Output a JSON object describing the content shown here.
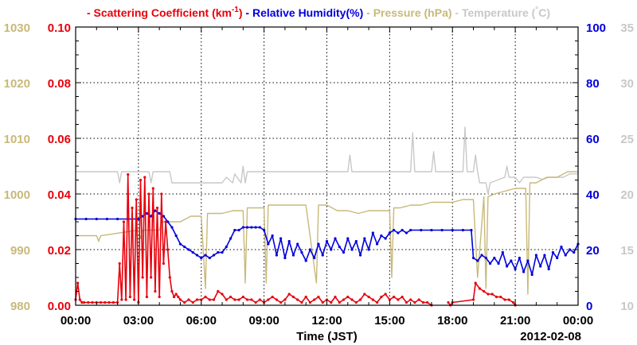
{
  "chart_data": {
    "type": "line",
    "legend": [
      {
        "prefix": "- ",
        "label": "Scattering Coefficient (km",
        "sup": "-1",
        "suffix": ")",
        "color": "#e8000b"
      },
      {
        "prefix": " - ",
        "label": "Relative Humidity(%)",
        "sup": "",
        "suffix": "",
        "color": "#0000dd"
      },
      {
        "prefix": " - ",
        "label": "Pressure (hPa)",
        "sup": "",
        "suffix": "",
        "color": "#c8b97a"
      },
      {
        "prefix": " - ",
        "label": "Temperature (",
        "sup": "°",
        "suffix": "C)",
        "color": "#c8c8c8"
      }
    ],
    "xlabel": "Time (JST)",
    "date_label": "2012-02-08",
    "x_range": [
      0,
      24
    ],
    "x_ticks": [
      0,
      3,
      6,
      9,
      12,
      15,
      18,
      21,
      24
    ],
    "x_tick_labels": [
      "00:00",
      "03:00",
      "06:00",
      "09:00",
      "12:00",
      "15:00",
      "18:00",
      "21:00",
      "00:00"
    ],
    "axes": {
      "scattering": {
        "range": [
          0,
          0.1
        ],
        "ticks": [
          0,
          0.02,
          0.04,
          0.06,
          0.08,
          0.1
        ],
        "tick_labels": [
          "0.00",
          "0.02",
          "0.04",
          "0.06",
          "0.08",
          "0.10"
        ],
        "color": "#e8000b",
        "side": "left-inner"
      },
      "pressure": {
        "range": [
          980,
          1030
        ],
        "ticks": [
          980,
          990,
          1000,
          1010,
          1020,
          1030
        ],
        "tick_labels": [
          "980",
          "990",
          "1000",
          "1010",
          "1020",
          "1030"
        ],
        "color": "#c8b97a",
        "side": "left-outer"
      },
      "humidity": {
        "range": [
          0,
          100
        ],
        "ticks": [
          0,
          20,
          40,
          60,
          80,
          100
        ],
        "tick_labels": [
          "0",
          "20",
          "40",
          "60",
          "80",
          "100"
        ],
        "color": "#0000dd",
        "side": "right-inner"
      },
      "temperature": {
        "range": [
          10,
          35
        ],
        "ticks": [
          10,
          15,
          20,
          25,
          30,
          35
        ],
        "tick_labels": [
          "10",
          "15",
          "20",
          "25",
          "30",
          "35"
        ],
        "color": "#c8c8c8",
        "side": "right-outer"
      }
    },
    "grid": true,
    "series": [
      {
        "name": "Temperature",
        "axis": "temperature",
        "color": "#c8c8c8",
        "x": [
          0,
          2.0,
          2.1,
          2.2,
          2.3,
          3.5,
          3.6,
          3.7,
          3.8,
          4.5,
          4.6,
          7.0,
          7.2,
          7.5,
          7.6,
          7.9,
          8.0,
          8.1,
          8.2,
          9.0,
          10.0,
          11.0,
          13.0,
          13.1,
          13.2,
          13.5,
          15.5,
          16.0,
          16.1,
          16.2,
          17.0,
          17.1,
          17.2,
          17.4,
          18.5,
          18.6,
          18.7,
          18.8,
          19.0,
          19.1,
          19.2,
          19.3,
          19.6,
          19.7,
          19.8,
          20.5,
          20.6,
          20.7,
          21.0,
          21.2,
          21.4,
          22.0,
          22.3,
          22.6,
          23.0,
          23.3,
          23.6,
          24
        ],
        "y": [
          22.0,
          22.0,
          21.0,
          22.0,
          22.0,
          22.0,
          21.0,
          22.0,
          22.0,
          22.0,
          21.0,
          21.0,
          21.5,
          21.0,
          21.8,
          21.0,
          22.5,
          21.0,
          22.0,
          22.0,
          22.0,
          22.0,
          22.0,
          23.5,
          22.0,
          22.0,
          22.0,
          22.0,
          25.5,
          22.0,
          22.0,
          23.8,
          22.0,
          22.0,
          22.0,
          26.0,
          22.0,
          22.0,
          22.0,
          23.5,
          22.0,
          21.0,
          21.0,
          20.0,
          21.0,
          21.5,
          22.5,
          21.5,
          21.5,
          21.0,
          21.5,
          21.5,
          21.3,
          21.5,
          21.5,
          21.5,
          21.8,
          21.8
        ]
      },
      {
        "name": "Pressure",
        "axis": "pressure",
        "color": "#c8b97a",
        "x": [
          0,
          1.0,
          1.1,
          1.2,
          3.0,
          3.1,
          3.2,
          4.0,
          4.1,
          5.0,
          5.5,
          6.0,
          6.2,
          6.3,
          7.0,
          7.5,
          8.0,
          8.1,
          8.2,
          8.5,
          9.0,
          9.1,
          9.2,
          10.0,
          10.5,
          11.0,
          11.5,
          11.6,
          11.7,
          12.0,
          12.5,
          13.0,
          13.5,
          14.0,
          15.0,
          15.1,
          15.2,
          15.5,
          16.0,
          16.5,
          17.0,
          17.5,
          18.0,
          18.5,
          19.0,
          19.2,
          19.5,
          19.6,
          19.7,
          20.0,
          20.5,
          21.0,
          21.5,
          21.6,
          21.7,
          22.0,
          22.5,
          23.0,
          23.5,
          24
        ],
        "y": [
          992.5,
          992.5,
          991.5,
          992.5,
          993.5,
          992.0,
          993.5,
          993.5,
          995.0,
          995.0,
          996.0,
          996.0,
          983.0,
          996.5,
          996.5,
          997.0,
          997.0,
          984.0,
          997.5,
          997.5,
          997.5,
          984.0,
          998.0,
          998.0,
          998.0,
          998.0,
          984.0,
          998.0,
          998.0,
          998.0,
          997.0,
          997.0,
          996.5,
          997.0,
          997.0,
          985.0,
          997.5,
          997.5,
          998.0,
          998.0,
          998.5,
          998.5,
          998.5,
          999.0,
          999.0,
          985.0,
          999.5,
          983.0,
          999.5,
          1000.0,
          1000.5,
          1001.0,
          1001.0,
          982.0,
          1002.0,
          1002.0,
          1003.0,
          1003.0,
          1004.0,
          1004.0
        ]
      },
      {
        "name": "Relative Humidity",
        "axis": "humidity",
        "color": "#0000dd",
        "x": [
          0,
          0.5,
          1.0,
          1.5,
          2.0,
          2.5,
          3.0,
          3.2,
          3.4,
          3.6,
          3.8,
          4.0,
          4.2,
          4.4,
          4.6,
          4.8,
          5.0,
          5.2,
          5.4,
          5.6,
          5.8,
          6.0,
          6.2,
          6.4,
          6.6,
          6.8,
          7.0,
          7.2,
          7.4,
          7.6,
          7.8,
          8.0,
          8.2,
          8.4,
          8.6,
          8.8,
          9.0,
          9.2,
          9.4,
          9.6,
          9.8,
          10.0,
          10.2,
          10.4,
          10.6,
          10.8,
          11.0,
          11.2,
          11.4,
          11.6,
          11.8,
          12.0,
          12.2,
          12.4,
          12.6,
          12.8,
          13.0,
          13.2,
          13.4,
          13.6,
          13.8,
          14.0,
          14.2,
          14.4,
          14.6,
          14.8,
          15.0,
          15.2,
          15.4,
          15.6,
          15.8,
          16.0,
          16.5,
          17.0,
          17.5,
          18.0,
          18.5,
          18.9,
          19.0,
          19.2,
          19.4,
          19.6,
          19.8,
          20.0,
          20.2,
          20.4,
          20.6,
          20.8,
          21.0,
          21.2,
          21.4,
          21.6,
          21.8,
          22.0,
          22.2,
          22.4,
          22.6,
          22.8,
          23.0,
          23.2,
          23.4,
          23.6,
          23.8,
          24
        ],
        "y": [
          31,
          31,
          31,
          31,
          31,
          31,
          31,
          32,
          33,
          32,
          34,
          33,
          32,
          30,
          28,
          25,
          22,
          21,
          20,
          19,
          18,
          17,
          18,
          17,
          18,
          19,
          19,
          21,
          24,
          27,
          27,
          28,
          28,
          28,
          28,
          28,
          27,
          22,
          25,
          18,
          24,
          17,
          23,
          18,
          22,
          19,
          16,
          20,
          17,
          22,
          18,
          23,
          20,
          24,
          21,
          19,
          24,
          20,
          23,
          18,
          24,
          20,
          26,
          22,
          25,
          24,
          26,
          27,
          26,
          27,
          26,
          27,
          27,
          27,
          27,
          27,
          27,
          27,
          17,
          16,
          18,
          17,
          15,
          17,
          15,
          19,
          14,
          16,
          13,
          17,
          12,
          16,
          11,
          18,
          14,
          18,
          13,
          19,
          17,
          21,
          18,
          20,
          19,
          22
        ]
      },
      {
        "name": "Scattering Coefficient",
        "axis": "scattering",
        "color": "#e8000b",
        "x": [
          0,
          0.1,
          0.2,
          0.3,
          0.4,
          0.6,
          0.8,
          1.0,
          1.2,
          1.4,
          1.6,
          1.8,
          2.0,
          2.1,
          2.2,
          2.3,
          2.4,
          2.5,
          2.6,
          2.7,
          2.8,
          2.9,
          3.0,
          3.1,
          3.2,
          3.3,
          3.4,
          3.5,
          3.6,
          3.7,
          3.8,
          3.9,
          4.0,
          4.1,
          4.2,
          4.3,
          4.4,
          4.5,
          4.6,
          4.7,
          4.8,
          4.9,
          5.0,
          5.2,
          5.4,
          5.6,
          5.8,
          6.0,
          6.2,
          6.4,
          6.6,
          6.8,
          7.0,
          7.2,
          7.4,
          7.6,
          7.8,
          8.0,
          8.2,
          8.4,
          8.6,
          8.8,
          9.0,
          9.2,
          9.4,
          9.6,
          9.8,
          10.0,
          10.2,
          10.4,
          10.6,
          10.8,
          11.0,
          11.2,
          11.4,
          11.6,
          11.8,
          12.0,
          12.2,
          12.4,
          12.6,
          12.8,
          13.0,
          13.2,
          13.4,
          13.6,
          13.8,
          14.0,
          14.2,
          14.4,
          14.6,
          14.8,
          15.0,
          15.2,
          15.4,
          15.6,
          15.8,
          16.0,
          16.2,
          16.4,
          16.6,
          16.8,
          17.0
        ],
        "y": [
          0.002,
          0.008,
          0.002,
          0.001,
          0.001,
          0.001,
          0.001,
          0.001,
          0.001,
          0.001,
          0.001,
          0.001,
          0.001,
          0.015,
          0.002,
          0.03,
          0.002,
          0.047,
          0.003,
          0.035,
          0.002,
          0.038,
          0.001,
          0.045,
          0.01,
          0.046,
          0.003,
          0.04,
          0.01,
          0.042,
          0.005,
          0.035,
          0.003,
          0.04,
          0.015,
          0.03,
          0.02,
          0.01,
          0.005,
          0.003,
          0.004,
          0.003,
          0.002,
          0.001,
          0.002,
          0.001,
          0.002,
          0.002,
          0.003,
          0.002,
          0.002,
          0.005,
          0.004,
          0.002,
          0.003,
          0.002,
          0.002,
          0.003,
          0.002,
          0.002,
          0.001,
          0.002,
          0.001,
          0.002,
          0.003,
          0.002,
          0.001,
          0.002,
          0.004,
          0.003,
          0.002,
          0.001,
          0.003,
          0.001,
          0.002,
          0.003,
          0.001,
          0.002,
          0.001,
          0.003,
          0.001,
          0.002,
          0.003,
          0.002,
          0.001,
          0.002,
          0.004,
          0.003,
          0.002,
          0.001,
          0.003,
          0.004,
          0.002,
          0.003,
          0.002,
          0.003,
          0.001,
          0.002,
          0.001,
          0.002,
          0.001,
          0.001,
          0.0
        ]
      },
      {
        "name": "Scattering Coefficient",
        "axis": "scattering",
        "color": "#e8000b",
        "x": [
          17.8,
          17.9,
          18.0,
          19.0,
          19.1,
          19.3,
          19.5,
          19.7,
          19.9,
          20.1,
          20.3,
          20.5,
          20.7,
          20.9,
          21.0
        ],
        "y": [
          0.001,
          0.0,
          0.001,
          0.002,
          0.008,
          0.006,
          0.005,
          0.004,
          0.004,
          0.003,
          0.003,
          0.002,
          0.002,
          0.001,
          0.0
        ]
      }
    ]
  }
}
